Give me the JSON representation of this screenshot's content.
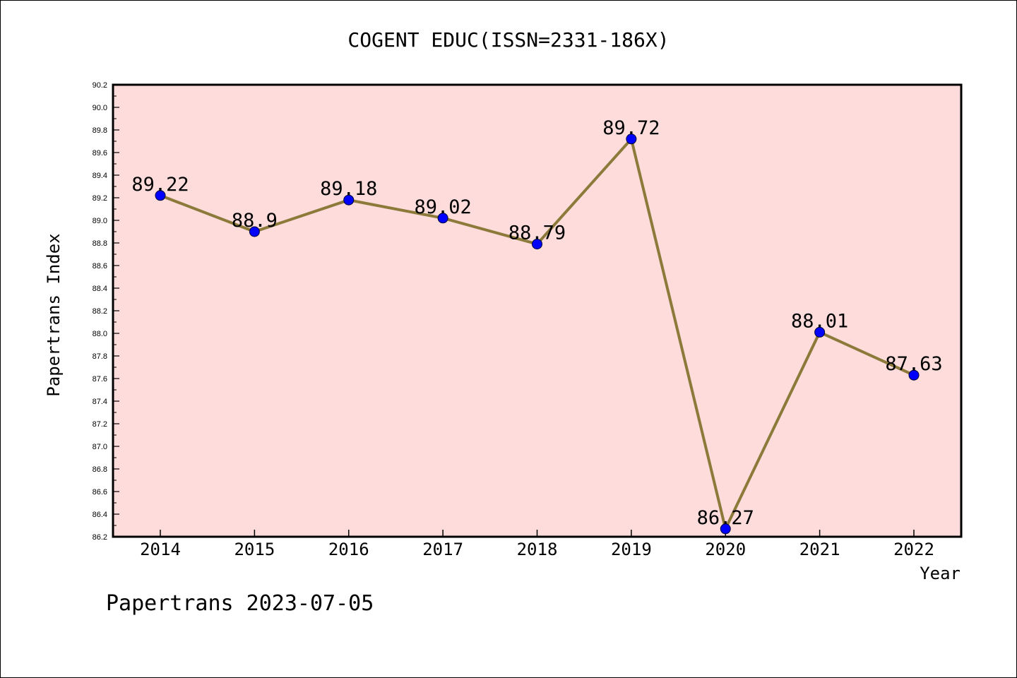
{
  "chart_data": {
    "type": "line",
    "title": "COGENT EDUC(ISSN=2331-186X)",
    "xlabel": "Year",
    "ylabel": "Papertrans Index",
    "categories": [
      "2014",
      "2015",
      "2016",
      "2017",
      "2018",
      "2019",
      "2020",
      "2021",
      "2022"
    ],
    "series": [
      {
        "values": [
          89.22,
          88.9,
          89.18,
          89.02,
          88.79,
          89.72,
          86.27,
          88.01,
          87.63
        ],
        "labels": [
          "89.22",
          "88.9",
          "89.18",
          "89.02",
          "88.79",
          "89.72",
          "86.27",
          "88.01",
          "87.63"
        ],
        "line_color": "#8b7a3a",
        "marker_color": "#0000ff"
      }
    ],
    "ylim": [
      86.2,
      90.2
    ],
    "yticks": [
      "86.2",
      "86.4",
      "86.6",
      "86.8",
      "87.0",
      "87.2",
      "87.4",
      "87.6",
      "87.8",
      "88.0",
      "88.2",
      "88.4",
      "88.6",
      "88.8",
      "89.0",
      "89.2",
      "89.4",
      "89.6",
      "89.8",
      "90.0",
      "90.2"
    ],
    "grid": false,
    "plot_background": "#fddcdb",
    "footer": "Papertrans 2023-07-05"
  }
}
